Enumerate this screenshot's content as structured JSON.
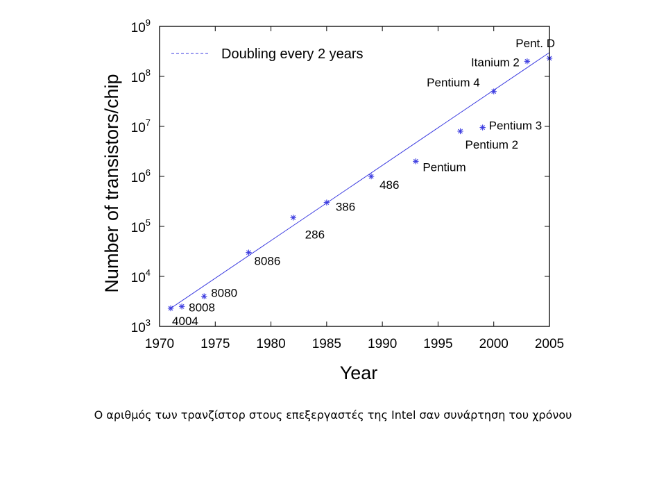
{
  "chart_data": {
    "type": "scatter",
    "title": "",
    "xlabel": "Year",
    "ylabel": "Number of transistors/chip",
    "xlim": [
      1970,
      2005
    ],
    "ylim": [
      1000,
      1000000000
    ],
    "yscale": "log",
    "grid": false,
    "legend_position": "top-left",
    "x_ticks": [
      "1970",
      "1975",
      "1980",
      "1985",
      "1990",
      "1995",
      "2000",
      "2005"
    ],
    "y_ticks": [
      {
        "base": "10",
        "exp": "3"
      },
      {
        "base": "10",
        "exp": "4"
      },
      {
        "base": "10",
        "exp": "5"
      },
      {
        "base": "10",
        "exp": "6"
      },
      {
        "base": "10",
        "exp": "7"
      },
      {
        "base": "10",
        "exp": "8"
      },
      {
        "base": "10",
        "exp": "9"
      }
    ],
    "series": [
      {
        "type": "scatter",
        "color": "#3a3ae0",
        "points": [
          {
            "label": "4004",
            "x": 1971,
            "y": 2300
          },
          {
            "label": "8008",
            "x": 1972,
            "y": 2500
          },
          {
            "label": "8080",
            "x": 1974,
            "y": 4000
          },
          {
            "label": "8086",
            "x": 1978,
            "y": 30000
          },
          {
            "label": "286",
            "x": 1982,
            "y": 150000
          },
          {
            "label": "386",
            "x": 1985,
            "y": 300000
          },
          {
            "label": "486",
            "x": 1989,
            "y": 1000000
          },
          {
            "label": "Pentium",
            "x": 1993,
            "y": 2000000
          },
          {
            "label": "Pentium 2",
            "x": 1997,
            "y": 8000000
          },
          {
            "label": "Pentium 3",
            "x": 1999,
            "y": 9500000
          },
          {
            "label": "Pentium 4",
            "x": 2000,
            "y": 50000000
          },
          {
            "label": "Itanium 2",
            "x": 2003,
            "y": 200000000
          },
          {
            "label": "Pent. D",
            "x": 2005,
            "y": 230000000
          }
        ]
      },
      {
        "type": "line",
        "name": "Doubling every 2 years",
        "color": "#3a3ae0",
        "x": [
          1971,
          2005
        ],
        "y": [
          2300,
          300000000
        ]
      }
    ]
  },
  "caption": "Ο αριθμός των τρανζίστορ στους επεξεργαστές της Intel σαν συνάρτηση του χρόνου"
}
